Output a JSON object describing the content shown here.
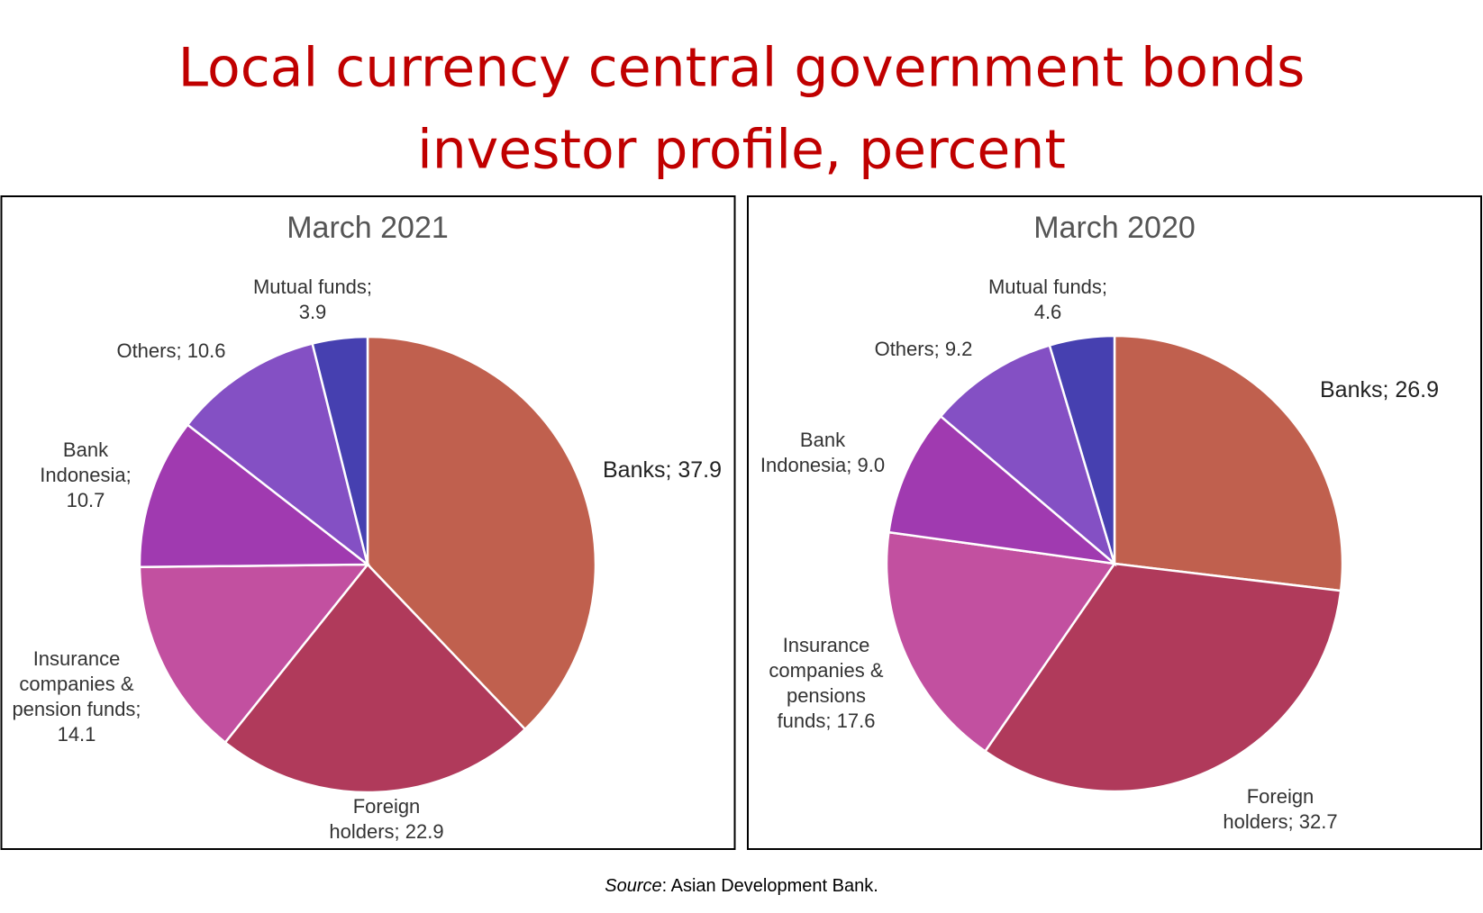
{
  "title_lines": [
    "Local currency central government bonds",
    "investor profile, percent"
  ],
  "source_label": "Source",
  "source_text": ": Asian Development Bank.",
  "chart_data": [
    {
      "type": "pie",
      "title": "March 2021",
      "values": [
        37.9,
        22.9,
        14.1,
        10.7,
        10.6,
        3.9
      ],
      "value_labels": [
        "Banks; 37.9",
        "Foreign holders; 22.9",
        "Insurance companies & pension funds; 14.1",
        "Bank Indonesia; 10.7",
        "Others; 10.6",
        "Mutual funds; 3.9"
      ],
      "colors": [
        "#c0604e",
        "#b03a5b",
        "#c250a0",
        "#a03ab0",
        "#8450c4",
        "#4640b0"
      ]
    },
    {
      "type": "pie",
      "title": "March 2020",
      "values": [
        26.9,
        32.7,
        17.6,
        9.0,
        9.2,
        4.6
      ],
      "value_labels": [
        "Banks; 26.9",
        "Foreign holders; 32.7",
        "Insurance companies & pensions funds; 17.6",
        "Bank Indonesia; 9.0",
        "Others; 9.2",
        "Mutual funds; 4.6"
      ],
      "colors": [
        "#c0604e",
        "#b03a5b",
        "#c250a0",
        "#a03ab0",
        "#8450c4",
        "#4640b0"
      ]
    }
  ]
}
